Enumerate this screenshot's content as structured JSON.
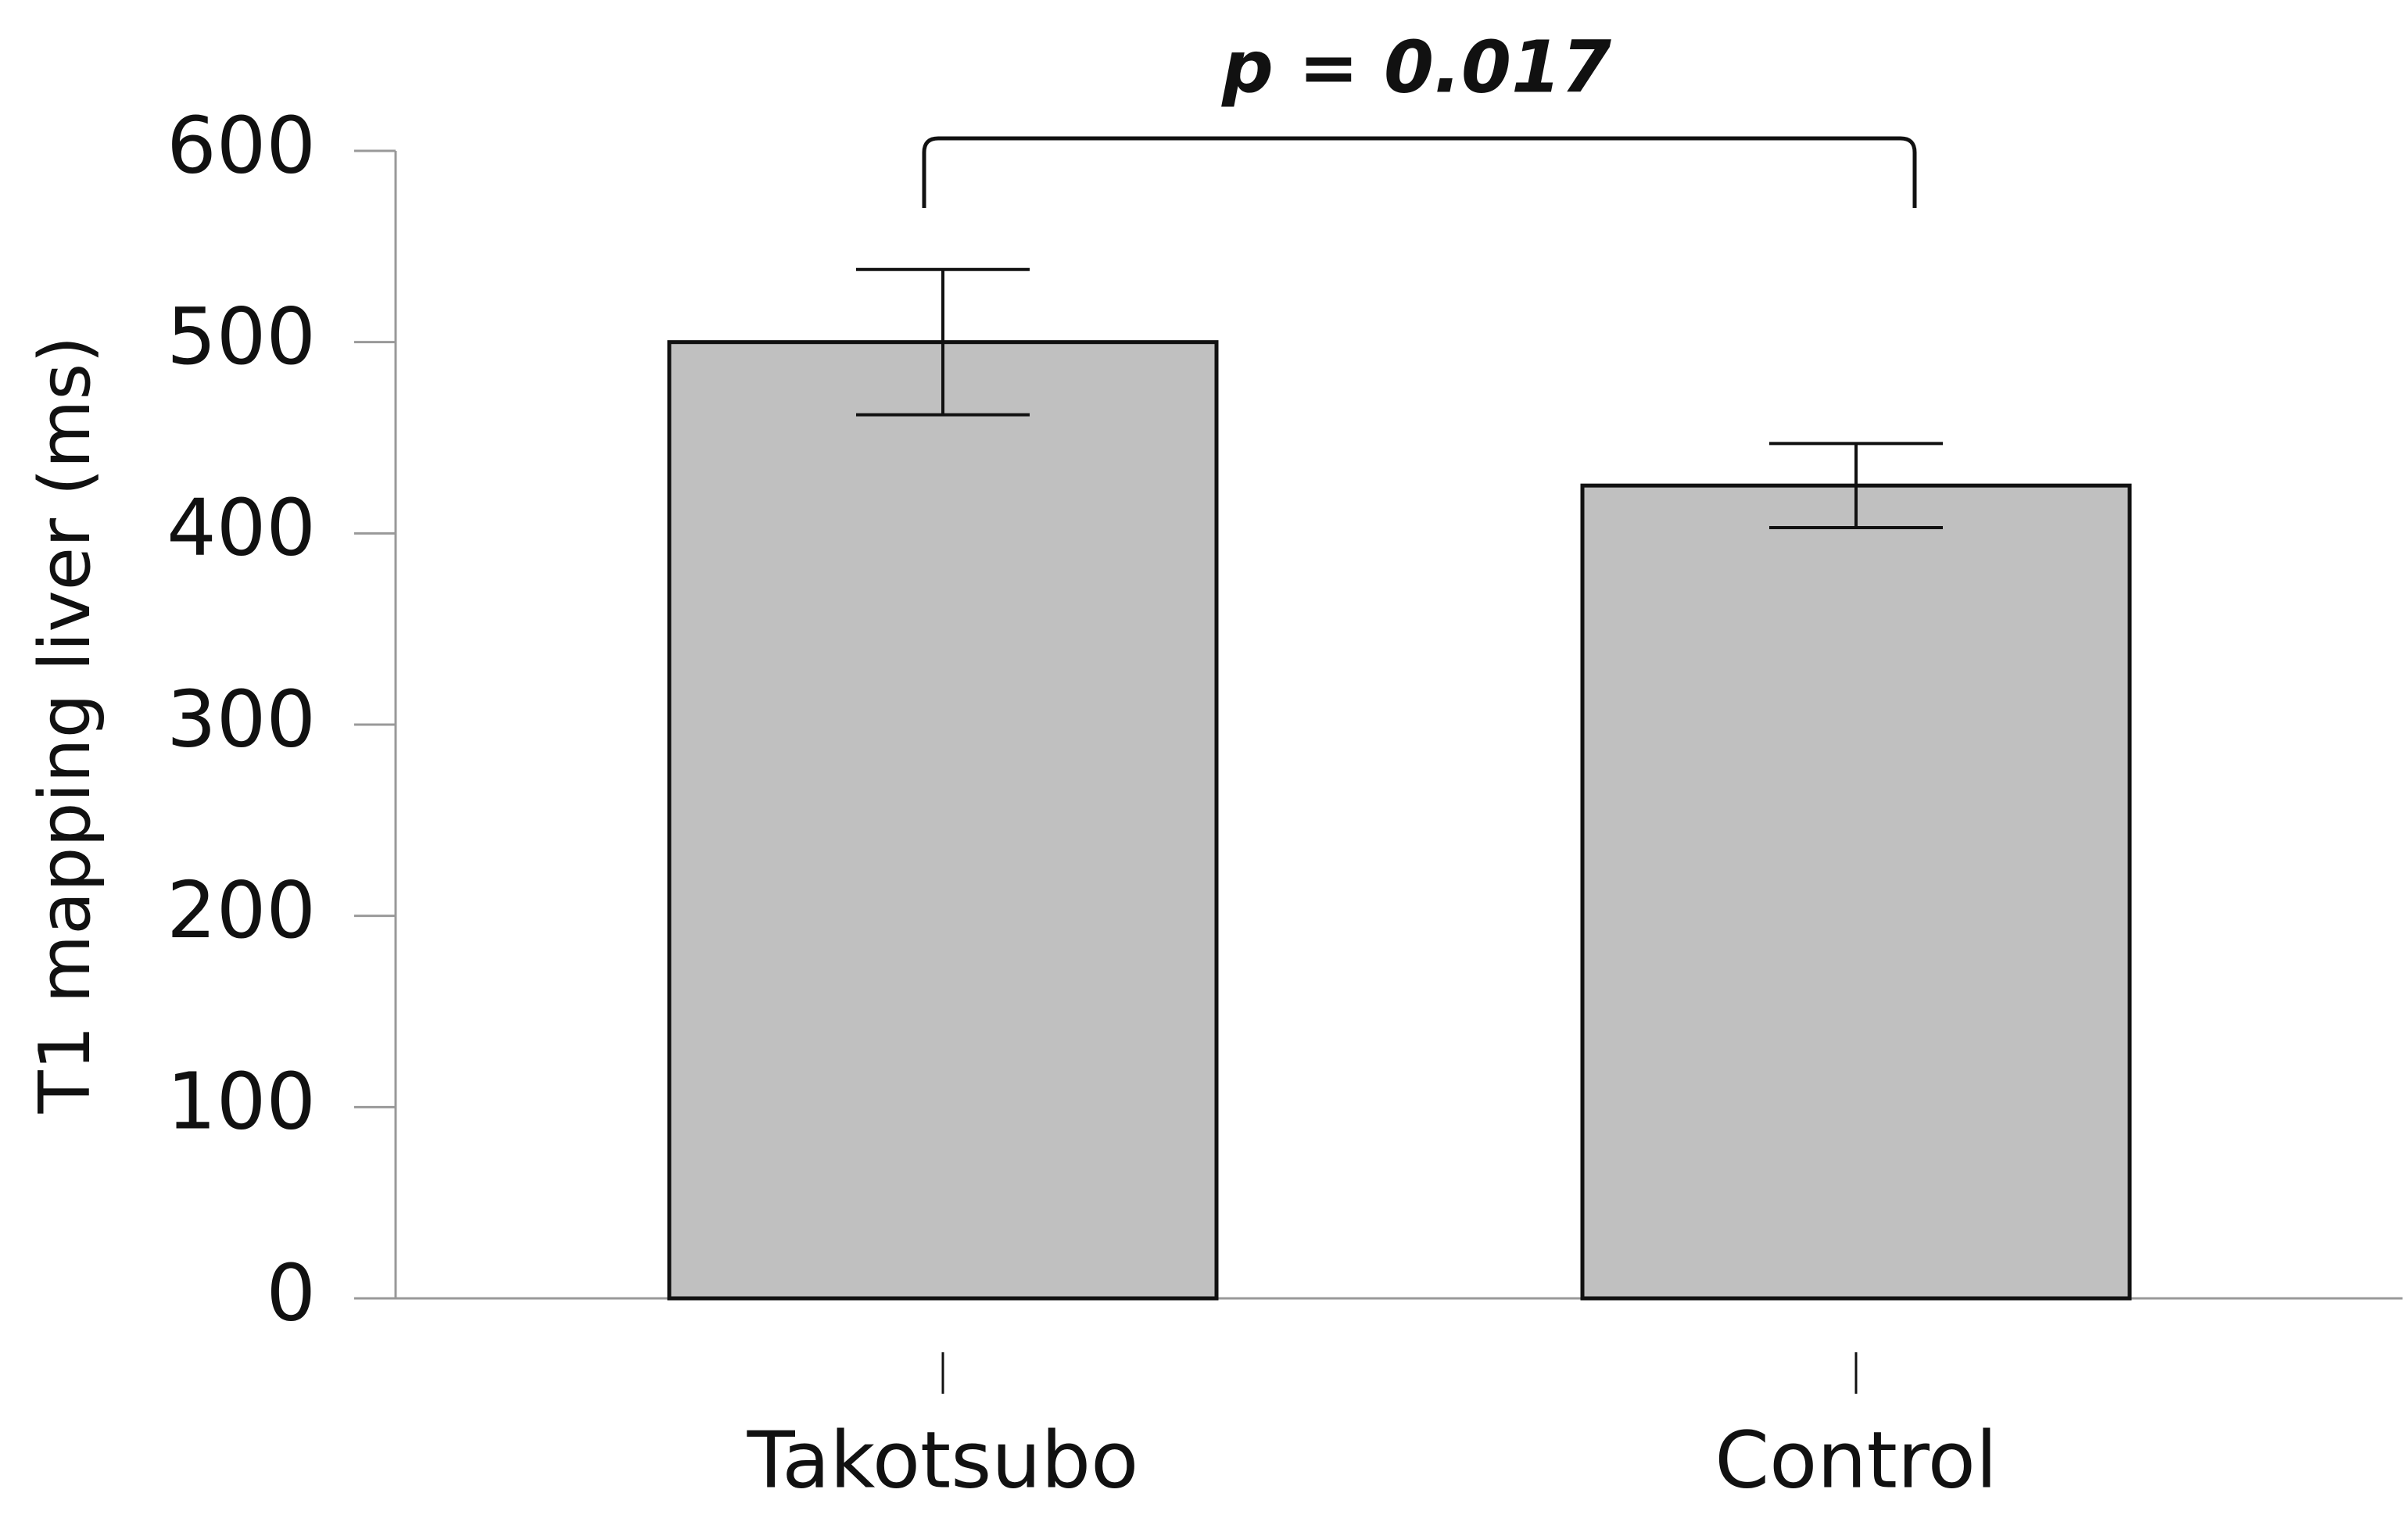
{
  "chart_data": {
    "type": "bar",
    "annotation": "p = 0.017",
    "y_label": "T1 mapping liver (ms)",
    "categories": [
      "Takotsubo",
      "Control"
    ],
    "values": [
      500,
      425
    ],
    "errors": [
      38,
      22
    ],
    "color": "#c0c0c0",
    "ylim": [
      0,
      600
    ],
    "yticks": [
      0,
      100,
      200,
      300,
      400,
      500,
      600
    ]
  }
}
